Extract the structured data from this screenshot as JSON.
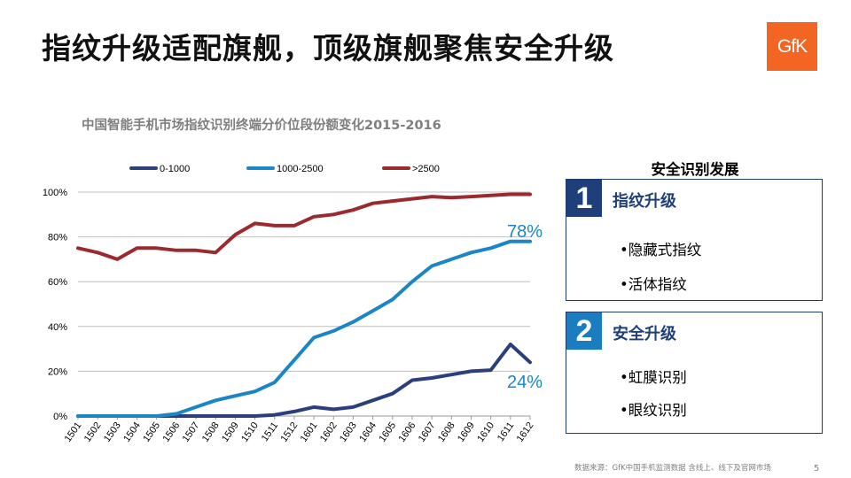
{
  "slide": {
    "title": "指纹升级适配旗舰，顶级旗舰聚焦安全升级",
    "logo_text": "GfK",
    "footer": "数据来源：GfK中国手机监测数据 含线上、线下及官网市场",
    "page_number": "5"
  },
  "panel": {
    "title": "安全识别发展",
    "box1": {
      "number": "1",
      "heading": "指纹升级",
      "items": [
        "•隐藏式指纹",
        "•活体指纹"
      ]
    },
    "box2": {
      "number": "2",
      "heading": "安全升级",
      "items": [
        "•虹膜识别",
        "•眼纹识别"
      ]
    }
  },
  "chart_data": {
    "type": "line",
    "title": "中国智能手机市场指纹识别终端分价位段份额变化2015-2016",
    "categories": [
      "1501",
      "1502",
      "1503",
      "1504",
      "1505",
      "1506",
      "1507",
      "1508",
      "1509",
      "1510",
      "1511",
      "1512",
      "1601",
      "1602",
      "1603",
      "1604",
      "1605",
      "1606",
      "1607",
      "1608",
      "1609",
      "1610",
      "1611",
      "1612"
    ],
    "yticks": [
      "0%",
      "20%",
      "40%",
      "60%",
      "80%",
      "100%"
    ],
    "ylim": [
      0,
      100
    ],
    "legend_position": "top",
    "series": [
      {
        "name": "0-1000",
        "color": "#2b3f7d",
        "values": [
          0,
          0,
          0,
          0,
          0,
          0,
          0,
          0,
          0,
          0,
          0.5,
          2,
          4,
          3,
          4,
          7,
          10,
          16,
          17,
          18.5,
          20,
          20.5,
          32,
          24
        ]
      },
      {
        "name": "1000-2500",
        "color": "#1b86c6",
        "values": [
          0,
          0,
          0,
          0,
          0,
          1,
          4,
          7,
          9,
          11,
          15,
          25,
          35,
          38,
          42,
          47,
          52,
          60,
          67,
          70,
          73,
          75,
          78,
          78
        ]
      },
      {
        "name": ">2500",
        "color": "#9b2a2f",
        "values": [
          75,
          73,
          70,
          75,
          75,
          74,
          74,
          73,
          81,
          86,
          85,
          85,
          89,
          90,
          92,
          95,
          96,
          97,
          98,
          97.5,
          98,
          98.5,
          99,
          99
        ]
      }
    ],
    "annotations": [
      {
        "text": "78%",
        "color": "#1b86c6",
        "series": "1000-2500"
      },
      {
        "text": "24%",
        "color": "#1b86c6",
        "series": "0-1000"
      }
    ]
  }
}
